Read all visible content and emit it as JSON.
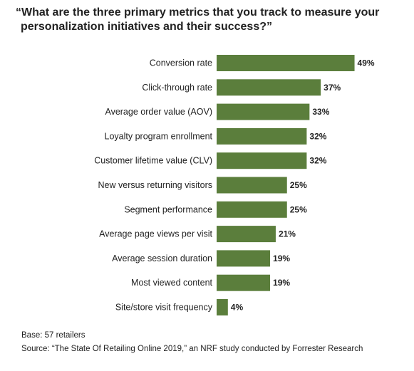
{
  "title": {
    "line1": "“What are the three primary metrics that you track to measure your",
    "line2": "personalization initiatives and their success?”"
  },
  "chart_data": {
    "type": "bar",
    "orientation": "horizontal",
    "categories": [
      "Conversion rate",
      "Click-through rate",
      "Average order value (AOV)",
      "Loyalty program enrollment",
      "Customer lifetime value (CLV)",
      "New versus returning visitors",
      "Segment performance",
      "Average page views per visit",
      "Average session duration",
      "Most viewed content",
      "Site/store visit frequency"
    ],
    "values": [
      49,
      37,
      33,
      32,
      32,
      25,
      25,
      21,
      19,
      19,
      4
    ],
    "value_labels": [
      "49%",
      "37%",
      "33%",
      "32%",
      "32%",
      "25%",
      "25%",
      "21%",
      "19%",
      "19%",
      "4%"
    ],
    "unit": "%",
    "xlim": [
      0,
      50
    ],
    "grid": false,
    "legend": "none",
    "bar_color": "#5b7e3c"
  },
  "notes": {
    "base": "Base: 57 retailers",
    "source": "Source: “The State Of Retailing Online 2019,” an NRF study conducted by Forrester Research"
  }
}
